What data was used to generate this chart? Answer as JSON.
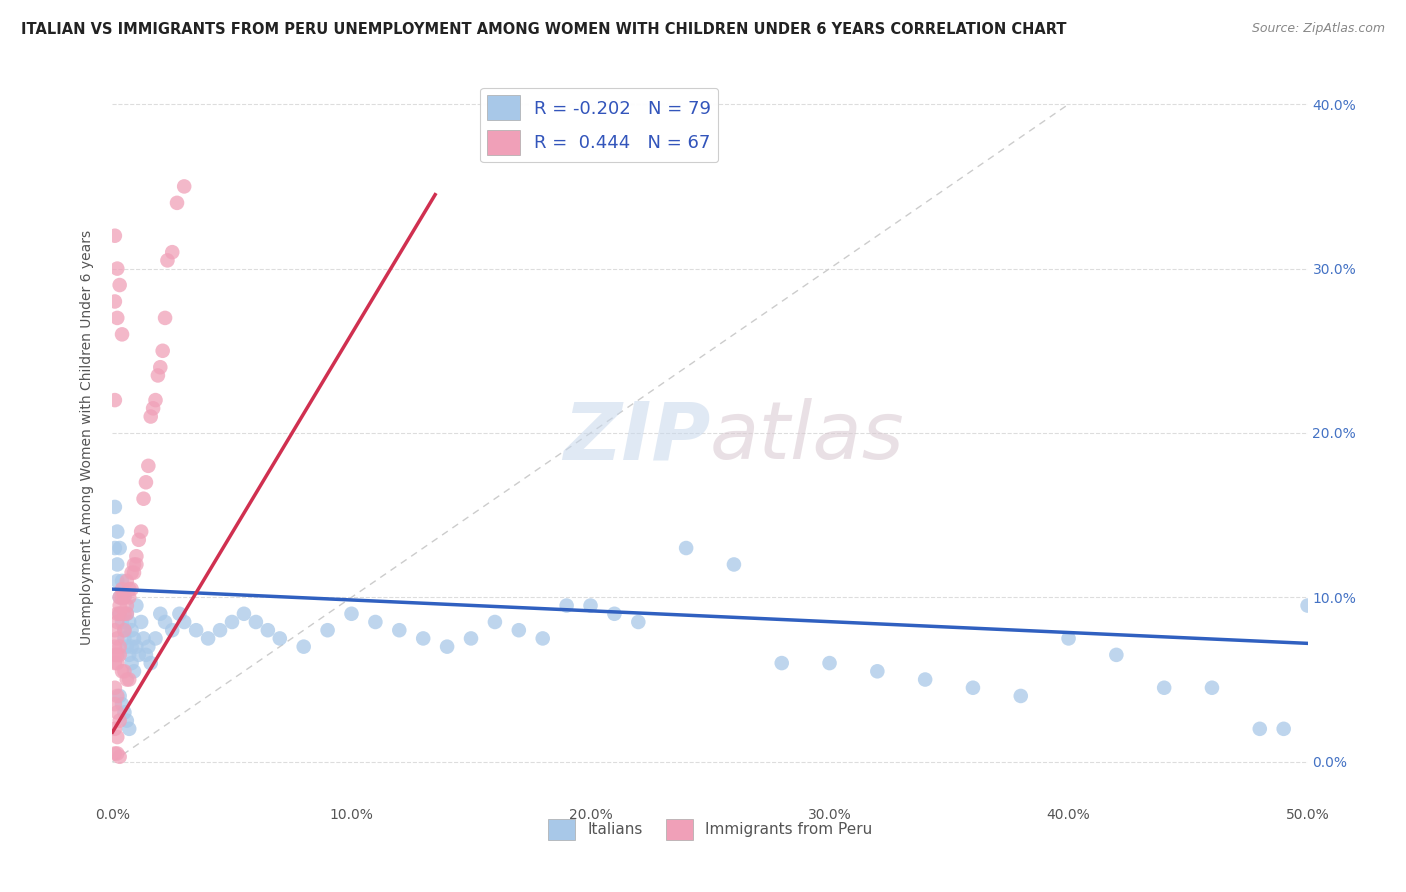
{
  "title": "ITALIAN VS IMMIGRANTS FROM PERU UNEMPLOYMENT AMONG WOMEN WITH CHILDREN UNDER 6 YEARS CORRELATION CHART",
  "source": "Source: ZipAtlas.com",
  "ylabel": "Unemployment Among Women with Children Under 6 years",
  "legend_italian_R": "-0.202",
  "legend_italian_N": "79",
  "legend_peru_R": "0.444",
  "legend_peru_N": "67",
  "italian_color": "#a8c8e8",
  "peru_color": "#f0a0b8",
  "italian_line_color": "#3060c0",
  "peru_line_color": "#d03050",
  "diagonal_color": "#cccccc",
  "watermark": "ZIPatlas",
  "background_color": "#ffffff",
  "xlim": [
    0.0,
    0.5
  ],
  "ylim": [
    -0.025,
    0.42
  ],
  "x_ticks": [
    0.0,
    0.1,
    0.2,
    0.3,
    0.4,
    0.5
  ],
  "x_tick_labels": [
    "0.0%",
    "10.0%",
    "20.0%",
    "30.0%",
    "40.0%",
    "50.0%"
  ],
  "y_ticks": [
    0.0,
    0.1,
    0.2,
    0.3,
    0.4
  ],
  "y_tick_labels": [
    "0.0%",
    "10.0%",
    "20.0%",
    "30.0%",
    "40.0%"
  ],
  "italian_line_x": [
    0.0,
    0.5
  ],
  "italian_line_y": [
    0.105,
    0.072
  ],
  "peru_line_x": [
    0.0,
    0.135
  ],
  "peru_line_y": [
    0.018,
    0.345
  ],
  "italian_scatter_x": [
    0.001,
    0.001,
    0.002,
    0.002,
    0.002,
    0.003,
    0.003,
    0.003,
    0.004,
    0.004,
    0.005,
    0.005,
    0.005,
    0.006,
    0.006,
    0.007,
    0.007,
    0.008,
    0.008,
    0.009,
    0.009,
    0.01,
    0.01,
    0.011,
    0.012,
    0.013,
    0.014,
    0.015,
    0.016,
    0.018,
    0.02,
    0.022,
    0.025,
    0.028,
    0.03,
    0.035,
    0.04,
    0.045,
    0.05,
    0.055,
    0.06,
    0.065,
    0.07,
    0.08,
    0.09,
    0.1,
    0.11,
    0.12,
    0.13,
    0.14,
    0.15,
    0.16,
    0.17,
    0.18,
    0.19,
    0.2,
    0.21,
    0.22,
    0.24,
    0.26,
    0.28,
    0.3,
    0.32,
    0.34,
    0.36,
    0.38,
    0.4,
    0.42,
    0.44,
    0.46,
    0.48,
    0.49,
    0.5,
    0.003,
    0.004,
    0.005,
    0.006,
    0.007,
    0.008
  ],
  "italian_scatter_y": [
    0.155,
    0.13,
    0.12,
    0.11,
    0.14,
    0.1,
    0.09,
    0.13,
    0.085,
    0.11,
    0.08,
    0.075,
    0.1,
    0.09,
    0.07,
    0.085,
    0.065,
    0.08,
    0.06,
    0.075,
    0.055,
    0.07,
    0.095,
    0.065,
    0.085,
    0.075,
    0.065,
    0.07,
    0.06,
    0.075,
    0.09,
    0.085,
    0.08,
    0.09,
    0.085,
    0.08,
    0.075,
    0.08,
    0.085,
    0.09,
    0.085,
    0.08,
    0.075,
    0.07,
    0.08,
    0.09,
    0.085,
    0.08,
    0.075,
    0.07,
    0.075,
    0.085,
    0.08,
    0.075,
    0.095,
    0.095,
    0.09,
    0.085,
    0.13,
    0.12,
    0.06,
    0.06,
    0.055,
    0.05,
    0.045,
    0.04,
    0.075,
    0.065,
    0.045,
    0.045,
    0.02,
    0.02,
    0.095,
    0.04,
    0.035,
    0.03,
    0.025,
    0.02,
    0.07
  ],
  "peru_scatter_x": [
    0.001,
    0.001,
    0.002,
    0.002,
    0.002,
    0.003,
    0.003,
    0.003,
    0.004,
    0.004,
    0.005,
    0.005,
    0.005,
    0.006,
    0.006,
    0.006,
    0.007,
    0.007,
    0.008,
    0.008,
    0.009,
    0.009,
    0.01,
    0.01,
    0.011,
    0.012,
    0.013,
    0.014,
    0.015,
    0.016,
    0.017,
    0.018,
    0.019,
    0.02,
    0.021,
    0.022,
    0.023,
    0.025,
    0.027,
    0.03,
    0.001,
    0.001,
    0.002,
    0.002,
    0.003,
    0.003,
    0.004,
    0.005,
    0.006,
    0.007,
    0.001,
    0.002,
    0.001,
    0.002,
    0.003,
    0.001,
    0.002,
    0.001,
    0.002,
    0.003,
    0.001,
    0.002,
    0.001,
    0.004,
    0.003,
    0.002,
    0.001
  ],
  "peru_scatter_y": [
    0.07,
    0.08,
    0.075,
    0.085,
    0.09,
    0.09,
    0.095,
    0.1,
    0.1,
    0.105,
    0.08,
    0.09,
    0.1,
    0.09,
    0.095,
    0.11,
    0.1,
    0.105,
    0.105,
    0.115,
    0.115,
    0.12,
    0.12,
    0.125,
    0.135,
    0.14,
    0.16,
    0.17,
    0.18,
    0.21,
    0.215,
    0.22,
    0.235,
    0.24,
    0.25,
    0.27,
    0.305,
    0.31,
    0.34,
    0.35,
    0.065,
    0.06,
    0.06,
    0.065,
    0.065,
    0.07,
    0.055,
    0.055,
    0.05,
    0.05,
    0.045,
    0.04,
    0.035,
    0.03,
    0.025,
    0.02,
    0.015,
    0.005,
    0.005,
    0.003,
    0.28,
    0.3,
    0.32,
    0.26,
    0.29,
    0.27,
    0.22
  ]
}
